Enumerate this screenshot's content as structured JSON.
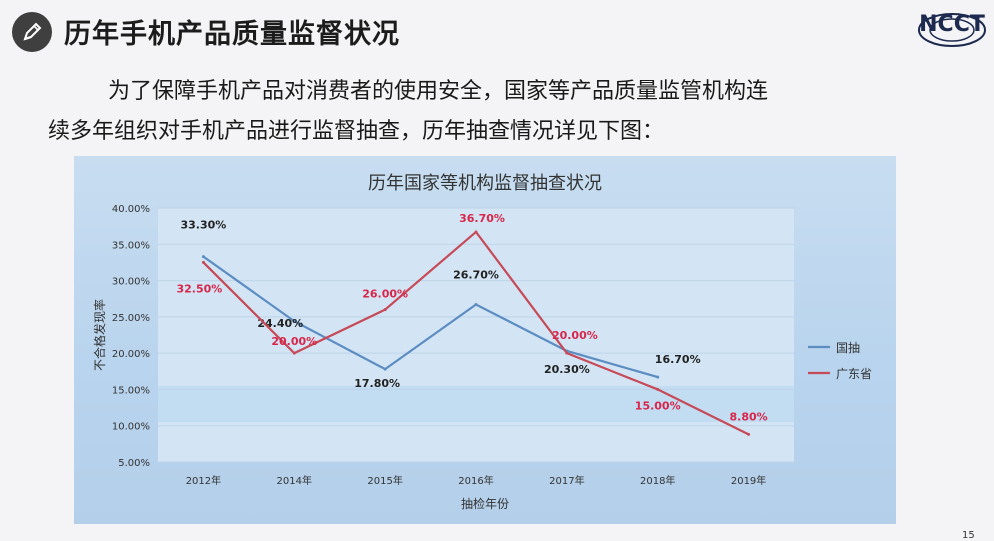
{
  "header": {
    "title": "历年手机产品质量监督状况",
    "icon": "pencil-icon",
    "logo": "NCCT"
  },
  "intro": {
    "line1": "为了保障手机产品对消费者的使用安全，国家等产品质量监管机构连",
    "line2": "续多年组织对手机产品进行监督抽查，历年抽查情况详见下图："
  },
  "page_number": "15",
  "chart_data": {
    "type": "line",
    "title": "历年国家等机构监督抽查状况",
    "xlabel": "抽检年份",
    "ylabel": "不合格发现率",
    "categories": [
      "2012年",
      "2014年",
      "2015年",
      "2016年",
      "2017年",
      "2018年",
      "2019年"
    ],
    "yticks": [
      "5.00%",
      "10.00%",
      "15.00%",
      "20.00%",
      "25.00%",
      "30.00%",
      "35.00%",
      "40.00%"
    ],
    "ylim": [
      5,
      40
    ],
    "legend_position": "right",
    "grid": true,
    "series": [
      {
        "name": "国抽",
        "color": "#5b8cc2",
        "label_color": "#222222",
        "values": [
          33.3,
          24.4,
          17.8,
          26.7,
          20.3,
          16.7,
          null
        ],
        "labels": [
          "33.30%",
          "24.40%",
          "17.80%",
          "26.70%",
          "20.30%",
          "16.70%",
          ""
        ]
      },
      {
        "name": "广东省",
        "color": "#c64a58",
        "label_color": "#d8264a",
        "values": [
          32.5,
          20.0,
          26.0,
          36.7,
          20.0,
          15.0,
          8.8
        ],
        "labels": [
          "32.50%",
          "20.00%",
          "26.00%",
          "36.70%",
          "20.00%",
          "15.00%",
          "8.80%"
        ]
      }
    ]
  }
}
